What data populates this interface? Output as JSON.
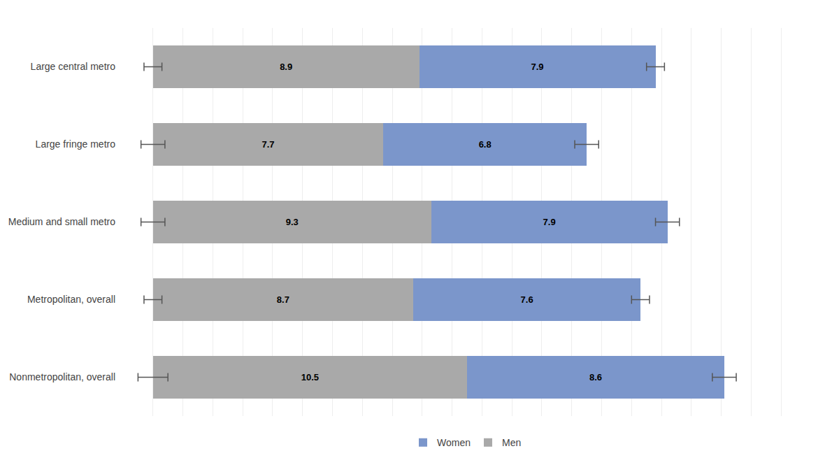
{
  "chart_data": {
    "type": "bar",
    "orientation": "horizontal",
    "stacked": true,
    "categories": [
      "Nonmetropolitan, overall",
      "Metropolitan, overall",
      "Medium and small metro",
      "Large fringe metro",
      "Large central metro"
    ],
    "series": [
      {
        "name": "Men",
        "color": "#a9a9a9",
        "values": [
          10.5,
          8.7,
          9.3,
          7.7,
          8.9
        ],
        "error_low": [
          0.5,
          0.3,
          0.4,
          0.4,
          0.3
        ],
        "error_high": [
          0.5,
          0.3,
          0.4,
          0.4,
          0.3
        ]
      },
      {
        "name": "Women",
        "color": "#7b96cb",
        "values": [
          8.6,
          7.6,
          7.9,
          6.8,
          7.9
        ],
        "error_low": [
          0.4,
          0.3,
          0.4,
          0.4,
          0.3
        ],
        "error_high": [
          0.4,
          0.3,
          0.4,
          0.4,
          0.3
        ]
      }
    ],
    "xlim": [
      -1,
      22
    ],
    "xticks": [
      -1,
      0,
      1,
      2,
      3,
      4,
      5,
      6,
      7,
      8,
      9,
      10,
      11,
      12,
      13,
      14,
      15,
      16,
      17,
      18,
      19,
      20,
      21,
      22
    ],
    "grid": true,
    "tick_labels": "y",
    "data_labels": true,
    "legend": "bottom"
  }
}
